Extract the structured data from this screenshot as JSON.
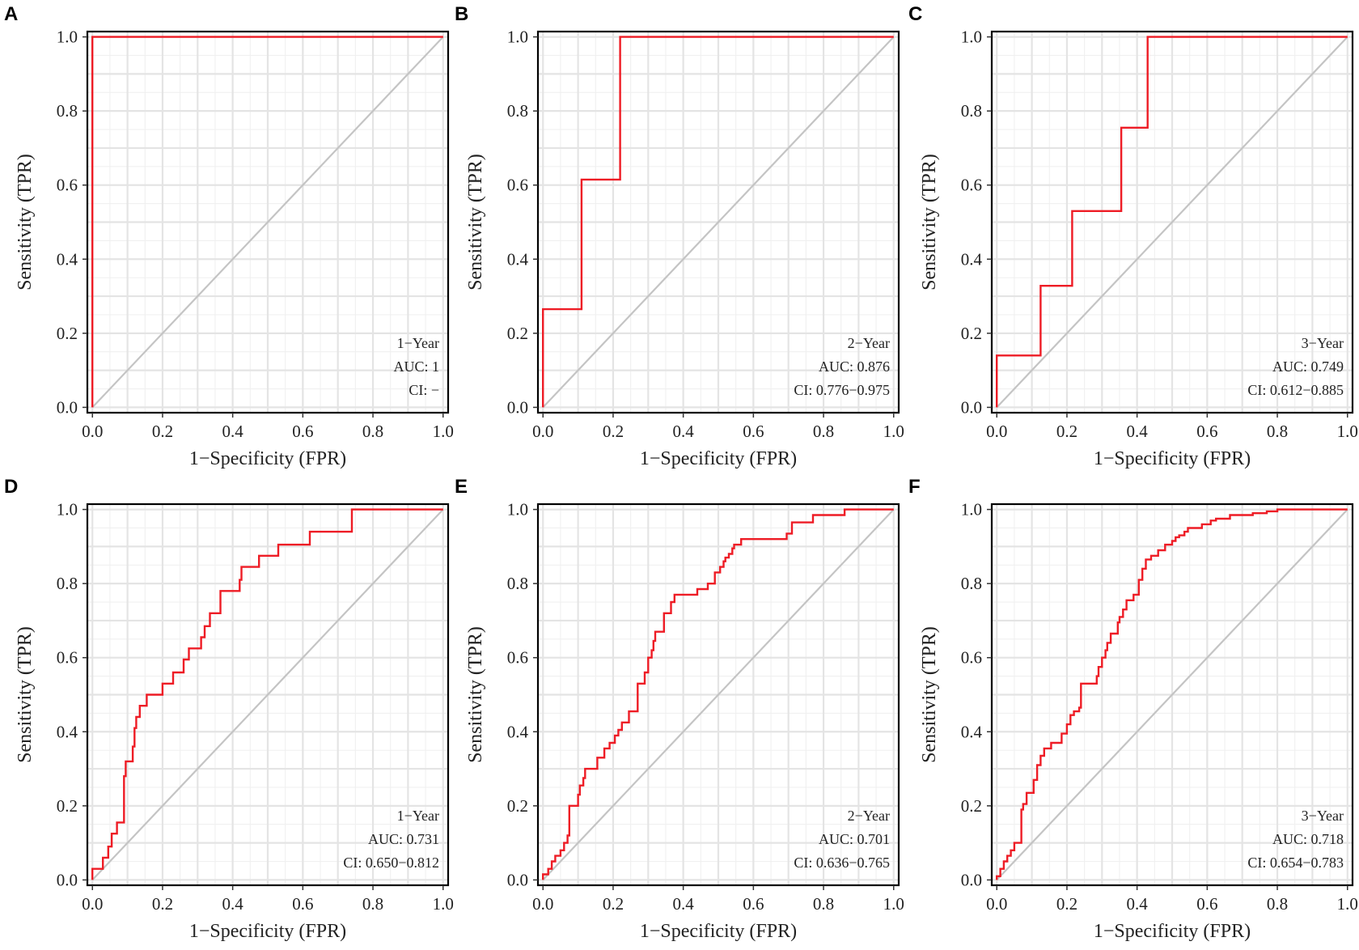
{
  "colors": {
    "roc": "#ee1c25",
    "diagonal": "#c4c4c4",
    "frame": "#000000"
  },
  "chart_data": [
    {
      "type": "line",
      "panel": "A",
      "title": "",
      "xlabel": "1−Specificity (FPR)",
      "ylabel": "Sensitivity (TPR)",
      "xlim": [
        0,
        1
      ],
      "ylim": [
        0,
        1
      ],
      "xticks": [
        "0.0",
        "0.2",
        "0.4",
        "0.6",
        "0.8",
        "1.0"
      ],
      "yticks": [
        "0.0",
        "0.2",
        "0.4",
        "0.6",
        "0.8",
        "1.0"
      ],
      "legend_position": "bottom-right",
      "annotation": [
        "1−Year",
        "AUC: 1",
        "CI: −"
      ],
      "series": [
        {
          "name": "ROC",
          "x": [
            0,
            0,
            1
          ],
          "y": [
            0,
            1,
            1
          ]
        }
      ]
    },
    {
      "type": "line",
      "panel": "B",
      "title": "",
      "xlabel": "1−Specificity (FPR)",
      "ylabel": "Sensitivity (TPR)",
      "xlim": [
        0,
        1
      ],
      "ylim": [
        0,
        1
      ],
      "xticks": [
        "0.0",
        "0.2",
        "0.4",
        "0.6",
        "0.8",
        "1.0"
      ],
      "yticks": [
        "0.0",
        "0.2",
        "0.4",
        "0.6",
        "0.8",
        "1.0"
      ],
      "legend_position": "bottom-right",
      "annotation": [
        "2−Year",
        "AUC: 0.876",
        "CI: 0.776−0.975"
      ],
      "series": [
        {
          "name": "ROC",
          "x": [
            0,
            0,
            0.11,
            0.11,
            0.22,
            0.22,
            1
          ],
          "y": [
            0,
            0.265,
            0.265,
            0.615,
            0.615,
            1,
            1
          ]
        }
      ]
    },
    {
      "type": "line",
      "panel": "C",
      "title": "",
      "xlabel": "1−Specificity (FPR)",
      "ylabel": "Sensitivity (TPR)",
      "xlim": [
        0,
        1
      ],
      "ylim": [
        0,
        1
      ],
      "xticks": [
        "0.0",
        "0.2",
        "0.4",
        "0.6",
        "0.8",
        "1.0"
      ],
      "yticks": [
        "0.0",
        "0.2",
        "0.4",
        "0.6",
        "0.8",
        "1.0"
      ],
      "legend_position": "bottom-right",
      "annotation": [
        "3−Year",
        "AUC: 0.749",
        "CI: 0.612−0.885"
      ],
      "series": [
        {
          "name": "ROC",
          "x": [
            0,
            0,
            0.125,
            0.125,
            0.215,
            0.215,
            0.355,
            0.355,
            0.43,
            0.43,
            1
          ],
          "y": [
            0,
            0.14,
            0.14,
            0.328,
            0.328,
            0.53,
            0.53,
            0.755,
            0.755,
            1,
            1
          ]
        }
      ]
    },
    {
      "type": "line",
      "panel": "D",
      "title": "",
      "xlabel": "1−Specificity (FPR)",
      "ylabel": "Sensitivity (TPR)",
      "xlim": [
        0,
        1
      ],
      "ylim": [
        0,
        1
      ],
      "xticks": [
        "0.0",
        "0.2",
        "0.4",
        "0.6",
        "0.8",
        "1.0"
      ],
      "yticks": [
        "0.0",
        "0.2",
        "0.4",
        "0.6",
        "0.8",
        "1.0"
      ],
      "legend_position": "bottom-right",
      "annotation": [
        "1−Year",
        "AUC: 0.731",
        "CI: 0.650−0.812"
      ],
      "series": [
        {
          "name": "ROC",
          "x": [
            0,
            0,
            0.03,
            0.03,
            0.045,
            0.045,
            0.055,
            0.055,
            0.07,
            0.07,
            0.09,
            0.09,
            0.095,
            0.095,
            0.115,
            0.115,
            0.12,
            0.12,
            0.125,
            0.125,
            0.135,
            0.135,
            0.155,
            0.155,
            0.2,
            0.2,
            0.23,
            0.23,
            0.26,
            0.26,
            0.275,
            0.275,
            0.31,
            0.31,
            0.32,
            0.32,
            0.335,
            0.335,
            0.365,
            0.365,
            0.42,
            0.42,
            0.425,
            0.425,
            0.475,
            0.475,
            0.53,
            0.53,
            0.62,
            0.62,
            0.74,
            0.74,
            0.75,
            0.75,
            1
          ],
          "y": [
            0,
            0.03,
            0.03,
            0.06,
            0.06,
            0.09,
            0.09,
            0.125,
            0.125,
            0.155,
            0.155,
            0.28,
            0.28,
            0.32,
            0.32,
            0.36,
            0.36,
            0.41,
            0.41,
            0.44,
            0.44,
            0.47,
            0.47,
            0.5,
            0.5,
            0.53,
            0.53,
            0.56,
            0.56,
            0.595,
            0.595,
            0.625,
            0.625,
            0.655,
            0.655,
            0.685,
            0.685,
            0.72,
            0.72,
            0.78,
            0.78,
            0.81,
            0.81,
            0.845,
            0.845,
            0.875,
            0.875,
            0.905,
            0.905,
            0.94,
            0.94,
            1,
            1,
            1,
            1
          ]
        }
      ]
    },
    {
      "type": "line",
      "panel": "E",
      "title": "",
      "xlabel": "1−Specificity (FPR)",
      "ylabel": "Sensitivity (TPR)",
      "xlim": [
        0,
        1
      ],
      "ylim": [
        0,
        1
      ],
      "xticks": [
        "0.0",
        "0.2",
        "0.4",
        "0.6",
        "0.8",
        "1.0"
      ],
      "yticks": [
        "0.0",
        "0.2",
        "0.4",
        "0.6",
        "0.8",
        "1.0"
      ],
      "legend_position": "bottom-right",
      "annotation": [
        "2−Year",
        "AUC: 0.701",
        "CI: 0.636−0.765"
      ],
      "series": [
        {
          "name": "ROC",
          "x": [
            0,
            0,
            0.015,
            0.015,
            0.025,
            0.025,
            0.035,
            0.035,
            0.05,
            0.05,
            0.06,
            0.06,
            0.07,
            0.07,
            0.075,
            0.075,
            0.1,
            0.1,
            0.105,
            0.105,
            0.115,
            0.115,
            0.12,
            0.12,
            0.155,
            0.155,
            0.175,
            0.175,
            0.19,
            0.19,
            0.205,
            0.205,
            0.215,
            0.215,
            0.225,
            0.225,
            0.245,
            0.245,
            0.27,
            0.27,
            0.29,
            0.29,
            0.3,
            0.3,
            0.31,
            0.31,
            0.315,
            0.315,
            0.32,
            0.32,
            0.345,
            0.345,
            0.365,
            0.365,
            0.375,
            0.375,
            0.44,
            0.44,
            0.47,
            0.47,
            0.49,
            0.49,
            0.505,
            0.505,
            0.515,
            0.515,
            0.52,
            0.52,
            0.53,
            0.53,
            0.54,
            0.54,
            0.545,
            0.545,
            0.565,
            0.565,
            0.695,
            0.695,
            0.71,
            0.71,
            0.77,
            0.77,
            0.86,
            0.86,
            1
          ],
          "y": [
            0,
            0.015,
            0.015,
            0.03,
            0.03,
            0.05,
            0.05,
            0.065,
            0.065,
            0.08,
            0.08,
            0.1,
            0.1,
            0.12,
            0.12,
            0.2,
            0.2,
            0.23,
            0.23,
            0.255,
            0.255,
            0.275,
            0.275,
            0.3,
            0.3,
            0.33,
            0.33,
            0.355,
            0.355,
            0.37,
            0.37,
            0.39,
            0.39,
            0.405,
            0.405,
            0.425,
            0.425,
            0.455,
            0.455,
            0.53,
            0.53,
            0.56,
            0.56,
            0.6,
            0.6,
            0.62,
            0.62,
            0.645,
            0.645,
            0.67,
            0.67,
            0.72,
            0.72,
            0.75,
            0.75,
            0.77,
            0.77,
            0.785,
            0.785,
            0.8,
            0.8,
            0.83,
            0.83,
            0.845,
            0.845,
            0.86,
            0.86,
            0.87,
            0.87,
            0.88,
            0.88,
            0.895,
            0.895,
            0.905,
            0.905,
            0.92,
            0.92,
            0.935,
            0.935,
            0.965,
            0.965,
            0.985,
            0.985,
            1,
            1
          ]
        }
      ]
    },
    {
      "type": "line",
      "panel": "F",
      "title": "",
      "xlabel": "1−Specificity (FPR)",
      "ylabel": "Sensitivity (TPR)",
      "xlim": [
        0,
        1
      ],
      "ylim": [
        0,
        1
      ],
      "xticks": [
        "0.0",
        "0.2",
        "0.4",
        "0.6",
        "0.8",
        "1.0"
      ],
      "yticks": [
        "0.0",
        "0.2",
        "0.4",
        "0.6",
        "0.8",
        "1.0"
      ],
      "legend_position": "bottom-right",
      "annotation": [
        "3−Year",
        "AUC: 0.718",
        "CI: 0.654−0.783"
      ],
      "series": [
        {
          "name": "ROC",
          "x": [
            0,
            0,
            0.01,
            0.01,
            0.02,
            0.02,
            0.03,
            0.03,
            0.04,
            0.04,
            0.05,
            0.05,
            0.07,
            0.07,
            0.075,
            0.075,
            0.085,
            0.085,
            0.105,
            0.105,
            0.115,
            0.115,
            0.125,
            0.125,
            0.135,
            0.135,
            0.155,
            0.155,
            0.185,
            0.185,
            0.2,
            0.2,
            0.21,
            0.21,
            0.22,
            0.22,
            0.235,
            0.235,
            0.24,
            0.24,
            0.285,
            0.285,
            0.29,
            0.29,
            0.3,
            0.3,
            0.31,
            0.31,
            0.315,
            0.315,
            0.325,
            0.325,
            0.345,
            0.345,
            0.35,
            0.35,
            0.36,
            0.36,
            0.37,
            0.37,
            0.39,
            0.39,
            0.405,
            0.405,
            0.415,
            0.415,
            0.425,
            0.425,
            0.44,
            0.44,
            0.46,
            0.46,
            0.48,
            0.48,
            0.5,
            0.5,
            0.51,
            0.51,
            0.52,
            0.52,
            0.535,
            0.535,
            0.545,
            0.545,
            0.585,
            0.585,
            0.61,
            0.61,
            0.625,
            0.625,
            0.665,
            0.665,
            0.73,
            0.73,
            0.77,
            0.77,
            0.8,
            0.8,
            0.85,
            0.85,
            1
          ],
          "y": [
            0,
            0.01,
            0.01,
            0.03,
            0.03,
            0.05,
            0.05,
            0.065,
            0.065,
            0.08,
            0.08,
            0.1,
            0.1,
            0.19,
            0.19,
            0.205,
            0.205,
            0.235,
            0.235,
            0.27,
            0.27,
            0.31,
            0.31,
            0.335,
            0.335,
            0.355,
            0.355,
            0.37,
            0.37,
            0.395,
            0.395,
            0.42,
            0.42,
            0.445,
            0.445,
            0.455,
            0.455,
            0.465,
            0.465,
            0.53,
            0.53,
            0.55,
            0.55,
            0.575,
            0.575,
            0.6,
            0.6,
            0.62,
            0.62,
            0.64,
            0.64,
            0.665,
            0.665,
            0.695,
            0.695,
            0.71,
            0.71,
            0.73,
            0.73,
            0.755,
            0.755,
            0.77,
            0.77,
            0.81,
            0.81,
            0.84,
            0.84,
            0.865,
            0.865,
            0.875,
            0.875,
            0.89,
            0.89,
            0.905,
            0.905,
            0.915,
            0.915,
            0.925,
            0.925,
            0.93,
            0.93,
            0.94,
            0.94,
            0.95,
            0.95,
            0.96,
            0.96,
            0.97,
            0.97,
            0.975,
            0.975,
            0.985,
            0.985,
            0.99,
            0.99,
            0.995,
            0.995,
            1,
            1,
            1,
            1
          ]
        }
      ]
    }
  ]
}
